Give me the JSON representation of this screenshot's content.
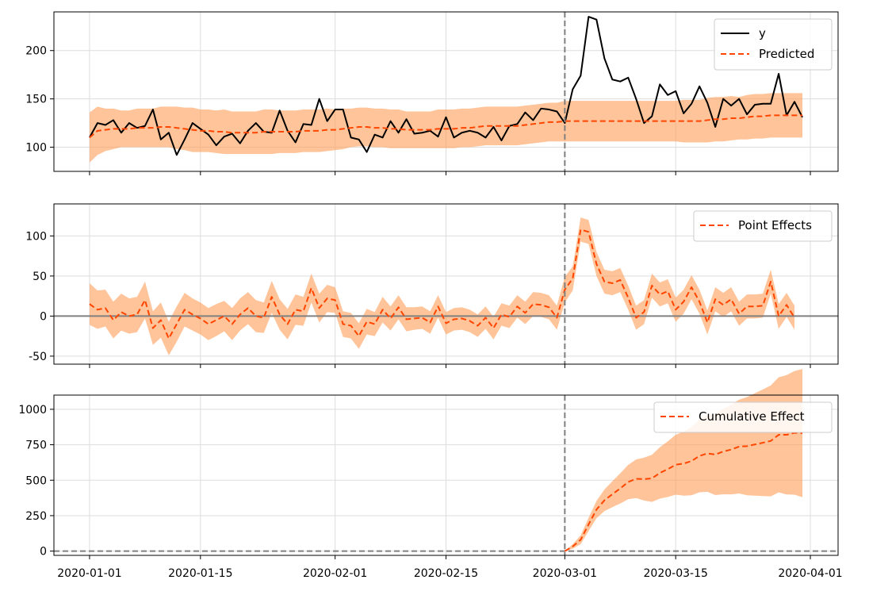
{
  "chart_data": {
    "type": "line",
    "x_range": [
      "2020-01-01",
      "2020-03-31"
    ],
    "x_ticks": [
      "2020-01-01",
      "2020-01-15",
      "2020-02-01",
      "2020-02-15",
      "2020-03-01",
      "2020-03-15",
      "2020-04-01"
    ],
    "intervention_date": "2020-03-01",
    "colors": {
      "observed": "#000000",
      "predicted": "#ff4500",
      "band": "#ffa05a",
      "vline": "#808080",
      "zero_line": "#808080"
    },
    "grid": true,
    "panels": [
      {
        "ylim": [
          75,
          240
        ],
        "yticks": [
          100,
          150,
          200
        ],
        "legend_position": "top-right",
        "series": [
          {
            "name": "y",
            "style": "solid",
            "values": [
              110,
              125,
              123,
              128,
              115,
              125,
              120,
              122,
              139,
              108,
              115,
              92,
              108,
              125,
              119,
              113,
              102,
              111,
              114,
              104,
              117,
              125,
              116,
              115,
              138,
              117,
              105,
              124,
              123,
              150,
              127,
              139,
              139,
              110,
              108,
              95,
              113,
              110,
              127,
              115,
              129,
              114,
              115,
              117,
              111,
              131,
              110,
              115,
              117,
              115,
              110,
              121,
              107,
              122,
              124,
              136,
              128,
              140,
              139,
              137,
              125,
              160,
              174,
              235,
              232,
              192,
              170,
              168,
              172,
              150,
              125,
              132,
              165,
              154,
              158,
              135,
              145,
              163,
              146,
              121,
              150,
              143,
              150,
              134,
              144,
              145,
              145,
              176,
              133,
              147,
              131
            ]
          },
          {
            "name": "Predicted",
            "style": "dashed",
            "values": [
              110,
              117,
              118,
              119,
              119,
              119,
              120,
              120,
              120,
              121,
              121,
              120,
              119,
              118,
              117,
              117,
              116,
              116,
              115,
              115,
              115,
              115,
              116,
              116,
              116,
              116,
              116,
              117,
              117,
              117,
              118,
              118,
              119,
              120,
              121,
              121,
              120,
              120,
              119,
              119,
              118,
              118,
              118,
              118,
              119,
              119,
              119,
              120,
              120,
              121,
              122,
              122,
              122,
              122,
              122,
              123,
              124,
              125,
              126,
              126,
              127,
              127,
              127,
              127,
              127,
              127,
              127,
              127,
              127,
              127,
              127,
              127,
              127,
              127,
              127,
              127,
              127,
              127,
              128,
              129,
              129,
              130,
              130,
              131,
              132,
              132,
              133,
              133,
              133,
              133,
              133
            ]
          }
        ],
        "band": {
          "lower": [
            84,
            92,
            96,
            98,
            100,
            100,
            100,
            100,
            100,
            100,
            100,
            98,
            97,
            95,
            95,
            95,
            94,
            93,
            93,
            93,
            93,
            93,
            93,
            93,
            94,
            94,
            94,
            95,
            95,
            95,
            96,
            97,
            98,
            100,
            101,
            101,
            100,
            100,
            99,
            99,
            99,
            99,
            99,
            99,
            99,
            99,
            99,
            100,
            100,
            101,
            102,
            102,
            102,
            102,
            102,
            103,
            104,
            105,
            106,
            106,
            106,
            106,
            106,
            106,
            106,
            106,
            106,
            106,
            106,
            106,
            106,
            106,
            106,
            106,
            106,
            105,
            105,
            105,
            105,
            106,
            106,
            107,
            108,
            108,
            109,
            109,
            110,
            110,
            110,
            110,
            110
          ]
        }
      },
      {
        "ylim": [
          -60,
          140
        ],
        "yticks": [
          -50,
          0,
          50,
          100
        ],
        "legend_position": "top-right",
        "series": [
          {
            "name": "Point Effects",
            "style": "dashed",
            "values": [
              15,
              8,
              10,
              -5,
              5,
              0,
              2,
              20,
              -15,
              -5,
              -28,
              -10,
              8,
              2,
              -3,
              -10,
              -5,
              0,
              -10,
              2,
              10,
              0,
              -2,
              24,
              2,
              -10,
              8,
              6,
              35,
              10,
              22,
              20,
              -10,
              -12,
              -25,
              -7,
              -10,
              8,
              -3,
              11,
              -4,
              -3,
              -2,
              -8,
              12,
              -9,
              -4,
              -3,
              -6,
              -12,
              -2,
              -15,
              2,
              -1,
              12,
              4,
              15,
              14,
              11,
              -2,
              33,
              47,
              108,
              105,
              65,
              43,
              41,
              45,
              23,
              -2,
              5,
              38,
              27,
              31,
              8,
              18,
              36,
              18,
              -8,
              21,
              14,
              21,
              3,
              12,
              12,
              13,
              43,
              0,
              14,
              -2
            ]
          }
        ],
        "band": {
          "lower": [
            -11,
            -16,
            -13,
            -28,
            -18,
            -22,
            -20,
            -3,
            -36,
            -27,
            -49,
            -32,
            -13,
            -18,
            -23,
            -30,
            -25,
            -19,
            -30,
            -18,
            -10,
            -20,
            -21,
            4,
            -17,
            -29,
            -11,
            -12,
            17,
            -8,
            5,
            4,
            -26,
            -28,
            -41,
            -23,
            -25,
            -8,
            -18,
            -4,
            -19,
            -17,
            -16,
            -22,
            -2,
            -23,
            -18,
            -17,
            -20,
            -26,
            -16,
            -29,
            -12,
            -15,
            -2,
            -10,
            0,
            -1,
            -4,
            -17,
            17,
            32,
            93,
            90,
            50,
            28,
            26,
            30,
            8,
            -17,
            -10,
            23,
            12,
            16,
            -7,
            3,
            21,
            3,
            -23,
            6,
            -1,
            6,
            -12,
            -3,
            -3,
            -2,
            28,
            -16,
            -1,
            -17
          ],
          "upper": [
            41,
            32,
            33,
            18,
            28,
            22,
            24,
            43,
            6,
            17,
            -7,
            12,
            29,
            22,
            17,
            10,
            15,
            19,
            10,
            22,
            30,
            20,
            17,
            44,
            21,
            9,
            27,
            24,
            53,
            28,
            39,
            36,
            6,
            4,
            -9,
            9,
            5,
            24,
            12,
            26,
            11,
            11,
            12,
            6,
            26,
            5,
            10,
            11,
            8,
            2,
            12,
            -1,
            16,
            13,
            26,
            18,
            30,
            29,
            26,
            13,
            49,
            62,
            123,
            120,
            80,
            58,
            56,
            60,
            38,
            13,
            20,
            53,
            42,
            46,
            23,
            33,
            51,
            33,
            7,
            36,
            29,
            36,
            18,
            27,
            27,
            28,
            58,
            15,
            29,
            13
          ]
        },
        "zero_line": true
      },
      {
        "ylim": [
          -30,
          1100
        ],
        "yticks": [
          0,
          250,
          500,
          750,
          1000
        ],
        "legend_position": "top-right",
        "series": [
          {
            "name": "Cumulative Effect",
            "style": "dashed",
            "start_date": "2020-03-01",
            "values": [
              0,
              33,
              80,
              188,
              293,
              358,
              401,
              442,
              487,
              510,
              508,
              513,
              551,
              578,
              609,
              617,
              635,
              671,
              689,
              681,
              702,
              716,
              737,
              740,
              752,
              764,
              777,
              820,
              820,
              834,
              832
            ]
          }
        ],
        "band": {
          "start_date": "2020-03-01",
          "lower": [
            0,
            17,
            49,
            142,
            232,
            282,
            310,
            336,
            366,
            374,
            357,
            347,
            370,
            382,
            398,
            391,
            394,
            415,
            418,
            395,
            401,
            400,
            406,
            394,
            391,
            388,
            386,
            414,
            399,
            398,
            380
          ],
          "upper": [
            0,
            49,
            111,
            234,
            354,
            434,
            492,
            548,
            608,
            646,
            659,
            679,
            732,
            774,
            820,
            843,
            876,
            927,
            960,
            967,
            1003,
            1032,
            1068,
            1086,
            1113,
            1140,
            1168,
            1226,
            1241,
            1270,
            1284
          ]
        },
        "zero_line": true
      }
    ]
  }
}
